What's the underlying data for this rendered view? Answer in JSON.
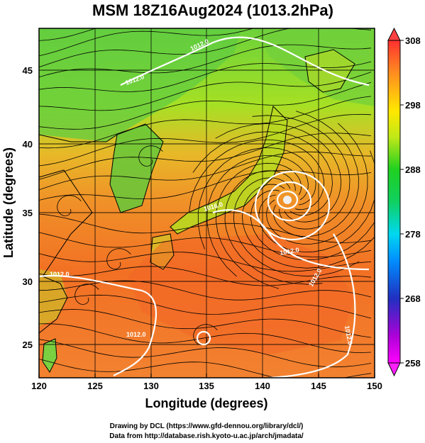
{
  "title": "MSM 18Z16Aug2024 (1013.2hPa)",
  "xlabel": "Longitude (degrees)",
  "ylabel": "Latitude  (degrees)",
  "x_ticks": [
    "120",
    "125",
    "130",
    "135",
    "140",
    "145",
    "150"
  ],
  "y_ticks": [
    "25",
    "30",
    "35",
    "40",
    "45"
  ],
  "colorbar": {
    "ticks": [
      "258",
      "268",
      "278",
      "288",
      "298",
      "308"
    ],
    "colors": [
      "#ff00ff",
      "#2030c0",
      "#00c8ff",
      "#20d020",
      "#ffff00",
      "#ff8020",
      "#ff3030"
    ]
  },
  "credits": {
    "line1": "Drawing by DCL (https://www.gfd-dennou.org/library/dcl/)",
    "line2": "Data from http://database.rish.kyoto-u.ac.jp/arch/jmadata/"
  },
  "map": {
    "lon_range": [
      120,
      150
    ],
    "lat_range": [
      22.4,
      47.6
    ],
    "field_colors": {
      "cool_north": "#5ccc3c",
      "mid": "#b8e020",
      "warm": "#f08c2a",
      "hot": "#f26a22"
    },
    "contour_labels": [
      "1012.0",
      "1012.0",
      "1016.0",
      "1012.0",
      "1012.0",
      "1012.0",
      "1012.0",
      "1012.0"
    ],
    "cyclone_center": {
      "lon": 142.3,
      "lat": 36.0
    }
  },
  "chart_data": {
    "type": "heatmap",
    "title": "MSM 18Z16Aug2024 (1013.2hPa)",
    "xlabel": "Longitude (degrees)",
    "ylabel": "Latitude  (degrees)",
    "xlim": [
      120,
      150
    ],
    "ylim": [
      22.4,
      47.6
    ],
    "colorbar_range": [
      258,
      308
    ],
    "colorbar_ticks": [
      258,
      268,
      278,
      288,
      298,
      308
    ]
  }
}
